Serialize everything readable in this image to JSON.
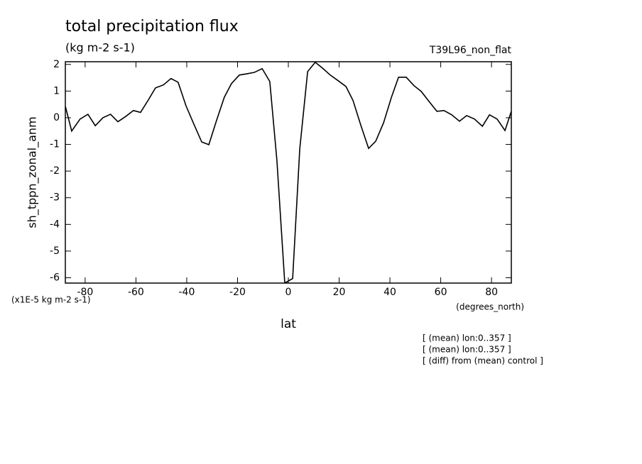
{
  "chart_data": {
    "type": "line",
    "title": "total precipitation flux",
    "subtitle": "(kg m-2 s-1)",
    "run_label": "T39L96_non_flat",
    "y_label": "sh_tppn_zonal_anm",
    "y_units": "(x1E-5 kg m-2 s-1)",
    "x_label": "lat",
    "x_units": "(degrees_north)",
    "notes": [
      "[ (mean) lon:0..357 ]",
      "[ (mean) lon:0..357 ]",
      "[ (diff) from (mean) control ]"
    ],
    "x": [
      -87.8,
      -85.3,
      -82,
      -78.9,
      -76,
      -73,
      -70,
      -67.1,
      -64,
      -61,
      -58.2,
      -55.1,
      -52.3,
      -49.2,
      -46.2,
      -43.4,
      -40.3,
      -37.2,
      -34.1,
      -31.3,
      -28.3,
      -25.2,
      -22.4,
      -19.3,
      -16.2,
      -13.4,
      -10.3,
      -7.3,
      -4.5,
      -1.4,
      1.7,
      4.5,
      7.6,
      10.6,
      13.7,
      16.5,
      19.6,
      22.7,
      25.5,
      28.5,
      31.6,
      34.4,
      37.5,
      40.6,
      43.4,
      46.4,
      49.5,
      52.3,
      55.4,
      58.5,
      61.3,
      64.3,
      67.4,
      70.2,
      73.3,
      76.4,
      79.2,
      82.2,
      85.3,
      87.8
    ],
    "series": [
      {
        "color": "#000000",
        "values": [
          0.43,
          -0.5,
          -0.05,
          0.13,
          -0.3,
          0.0,
          0.13,
          -0.15,
          0.05,
          0.27,
          0.2,
          0.67,
          1.12,
          1.23,
          1.47,
          1.33,
          0.45,
          -0.24,
          -0.91,
          -1.01,
          -0.11,
          0.77,
          1.28,
          1.6,
          1.65,
          1.7,
          1.84,
          1.36,
          -1.6,
          -6.2,
          -6.03,
          -1.17,
          1.73,
          2.08,
          1.84,
          1.6,
          1.39,
          1.17,
          0.64,
          -0.27,
          -1.15,
          -0.88,
          -0.19,
          0.77,
          1.52,
          1.52,
          1.2,
          0.99,
          0.61,
          0.24,
          0.27,
          0.11,
          -0.13,
          0.08,
          -0.05,
          -0.32,
          0.11,
          -0.05,
          -0.48,
          0.24
        ]
      }
    ],
    "xlim": [
      -87.8,
      87.8
    ],
    "ylim": [
      -6.2,
      2.1
    ],
    "xticks": [
      -80,
      -60,
      -40,
      -20,
      0,
      20,
      40,
      60,
      80
    ],
    "yticks": [
      -6,
      -5,
      -4,
      -3,
      -2,
      -1,
      0,
      1,
      2
    ]
  }
}
